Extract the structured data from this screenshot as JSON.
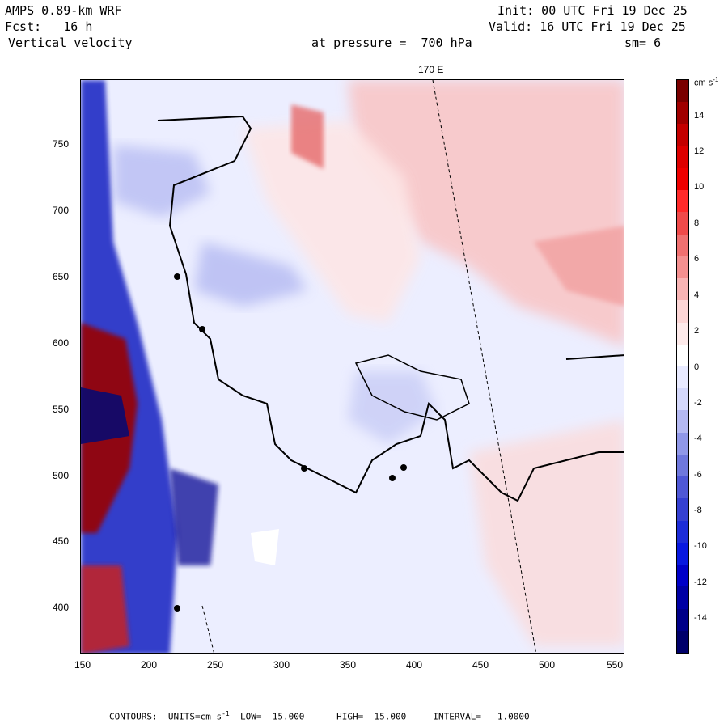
{
  "header": {
    "line1_left": "AMPS 0.89-km WRF",
    "line2_left": "Fcst:   16 h",
    "line3_left": "Vertical velocity",
    "line1_right": "Init: 00 UTC Fri 19 Dec 25",
    "line2_right": "Valid: 16 UTC Fri 19 Dec 25",
    "pressure_label": "at pressure =  700 hPa",
    "smoothing_label": "sm= 6",
    "longitude_label": "170 E"
  },
  "axes": {
    "x_ticks": [
      "150",
      "200",
      "250",
      "300",
      "350",
      "400",
      "450",
      "500",
      "550"
    ],
    "y_ticks": [
      "750",
      "700",
      "650",
      "600",
      "550",
      "500",
      "450",
      "400"
    ]
  },
  "colorbar": {
    "units": "cm s",
    "units_exp": "-1",
    "labels": [
      "14",
      "12",
      "10",
      "8",
      "6",
      "4",
      "2",
      "0",
      "-2",
      "-4",
      "-6",
      "-8",
      "-10",
      "-12",
      "-14"
    ],
    "colors": [
      "#7a0000",
      "#a00000",
      "#c40000",
      "#dd0000",
      "#ee0000",
      "#ff2a2a",
      "#f04a4a",
      "#f07070",
      "#f49090",
      "#f8b4b4",
      "#fcd6d6",
      "#fdeaea",
      "#ffffff",
      "#e8eaff",
      "#d4d8fb",
      "#b4b9f2",
      "#9098e8",
      "#6f78dd",
      "#4f58d6",
      "#3540d2",
      "#1c2cd8",
      "#0818e0",
      "#0000c8",
      "#0000a4",
      "#000088",
      "#00006a"
    ]
  },
  "footer": {
    "contours": "CONTOURS:  UNITS=cm s",
    "units_exp": "-1",
    "rest": "  LOW= -15.000      HIGH=  15.000     INTERVAL=   1.0000"
  }
}
